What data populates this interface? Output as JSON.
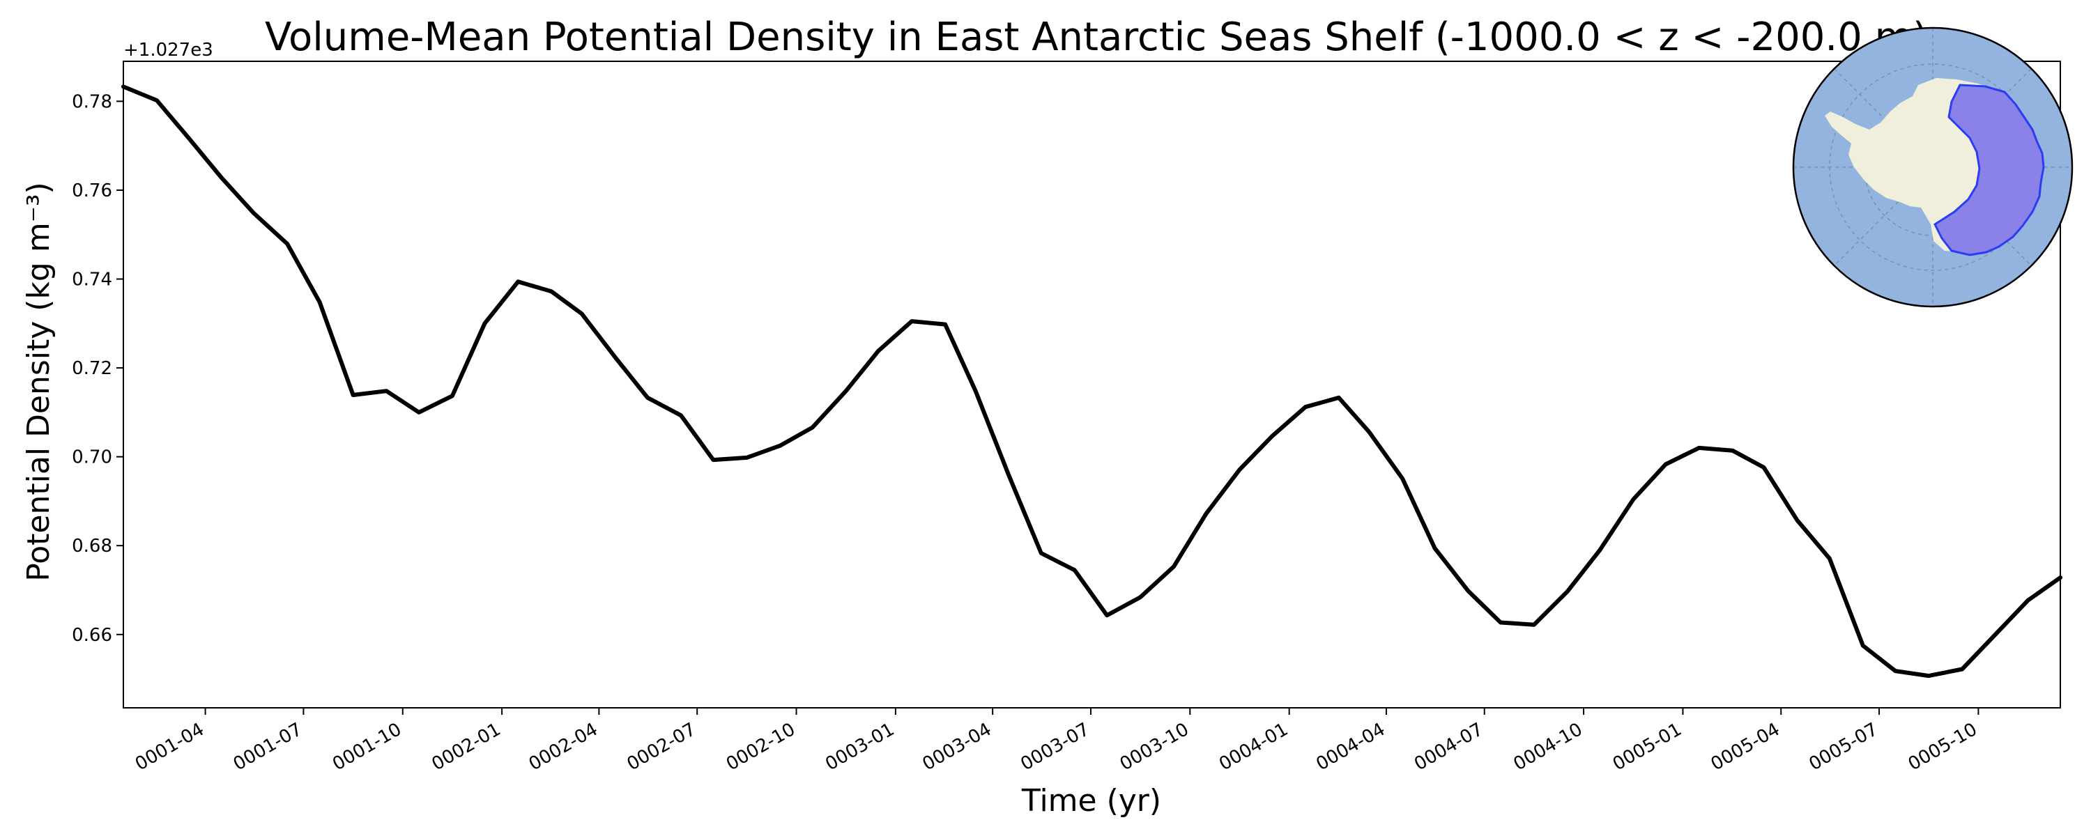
{
  "chart_data": {
    "type": "line",
    "title": "Volume-Mean Potential Density in East Antarctic Seas Shelf (-1000.0 < z < -200.0 m)",
    "xlabel": "Time (yr)",
    "ylabel": "Potential Density (kg m⁻³)",
    "y_offset_label": "+1.027e3",
    "ylim": [
      0.6435,
      0.789
    ],
    "yticks": [
      0.66,
      0.68,
      0.7,
      0.72,
      0.74,
      0.76,
      0.78
    ],
    "ytick_labels": [
      "0.66",
      "0.68",
      "0.70",
      "0.72",
      "0.74",
      "0.76",
      "0.78"
    ],
    "xlim": [
      "0001-01-16",
      "0005-12-16"
    ],
    "xticks": [
      "0001-04-01",
      "0001-07-01",
      "0001-10-01",
      "0002-01-01",
      "0002-04-01",
      "0002-07-01",
      "0002-10-01",
      "0003-01-01",
      "0003-04-01",
      "0003-07-01",
      "0003-10-01",
      "0004-01-01",
      "0004-04-01",
      "0004-07-01",
      "0004-10-01",
      "0005-01-01",
      "0005-04-01",
      "0005-07-01",
      "0005-10-01"
    ],
    "xtick_labels": [
      "0001-04",
      "0001-07",
      "0001-10",
      "0002-01",
      "0002-04",
      "0002-07",
      "0002-10",
      "0003-01",
      "0003-04",
      "0003-07",
      "0003-10",
      "0004-01",
      "0004-04",
      "0004-07",
      "0004-10",
      "0005-01",
      "0005-04",
      "0005-07",
      "0005-10"
    ],
    "x_label_rotation": 30,
    "grid": false,
    "series": [
      {
        "color": "#000000",
        "x": [
          "0001-01-16",
          "0001-02-16",
          "0001-03-16",
          "0001-04-16",
          "0001-05-16",
          "0001-06-16",
          "0001-07-16",
          "0001-08-16",
          "0001-09-16",
          "0001-10-16",
          "0001-11-16",
          "0001-12-16",
          "0002-01-16",
          "0002-02-16",
          "0002-03-16",
          "0002-04-16",
          "0002-05-16",
          "0002-06-16",
          "0002-07-16",
          "0002-08-16",
          "0002-09-16",
          "0002-10-16",
          "0002-11-16",
          "0002-12-16",
          "0003-01-16",
          "0003-02-16",
          "0003-03-16",
          "0003-04-16",
          "0003-05-16",
          "0003-06-16",
          "0003-07-16",
          "0003-08-16",
          "0003-09-16",
          "0003-10-16",
          "0003-11-16",
          "0003-12-16",
          "0004-01-16",
          "0004-02-16",
          "0004-03-16",
          "0004-04-16",
          "0004-05-16",
          "0004-06-16",
          "0004-07-16",
          "0004-08-16",
          "0004-09-16",
          "0004-10-16",
          "0004-11-16",
          "0004-12-16",
          "0005-01-16",
          "0005-02-16",
          "0005-03-16",
          "0005-04-16",
          "0005-05-16",
          "0005-06-16",
          "0005-07-16",
          "0005-08-16",
          "0005-09-16",
          "0005-10-16",
          "0005-11-16",
          "0005-12-16"
        ],
        "y": [
          0.7833,
          0.7802,
          0.7719,
          0.7628,
          0.7548,
          0.7479,
          0.7348,
          0.7139,
          0.7148,
          0.71,
          0.7137,
          0.73,
          0.7394,
          0.7372,
          0.7322,
          0.7224,
          0.7133,
          0.7093,
          0.6993,
          0.6998,
          0.7025,
          0.7066,
          0.7148,
          0.7238,
          0.7305,
          0.7298,
          0.7149,
          0.6958,
          0.6783,
          0.6745,
          0.6643,
          0.6684,
          0.6753,
          0.6872,
          0.6971,
          0.7046,
          0.7112,
          0.7133,
          0.7056,
          0.6951,
          0.6794,
          0.6698,
          0.6627,
          0.6622,
          0.6697,
          0.679,
          0.6904,
          0.6983,
          0.702,
          0.7014,
          0.6976,
          0.6857,
          0.6771,
          0.6575,
          0.6518,
          0.6507,
          0.6522,
          0.6598,
          0.6677,
          0.6728
        ]
      }
    ]
  },
  "inset_map": {
    "ocean_color": "#94b4e0",
    "land_color": "#efefdc",
    "region_color": "#8a82e8",
    "region_edge_color": "#2c3cf0"
  }
}
